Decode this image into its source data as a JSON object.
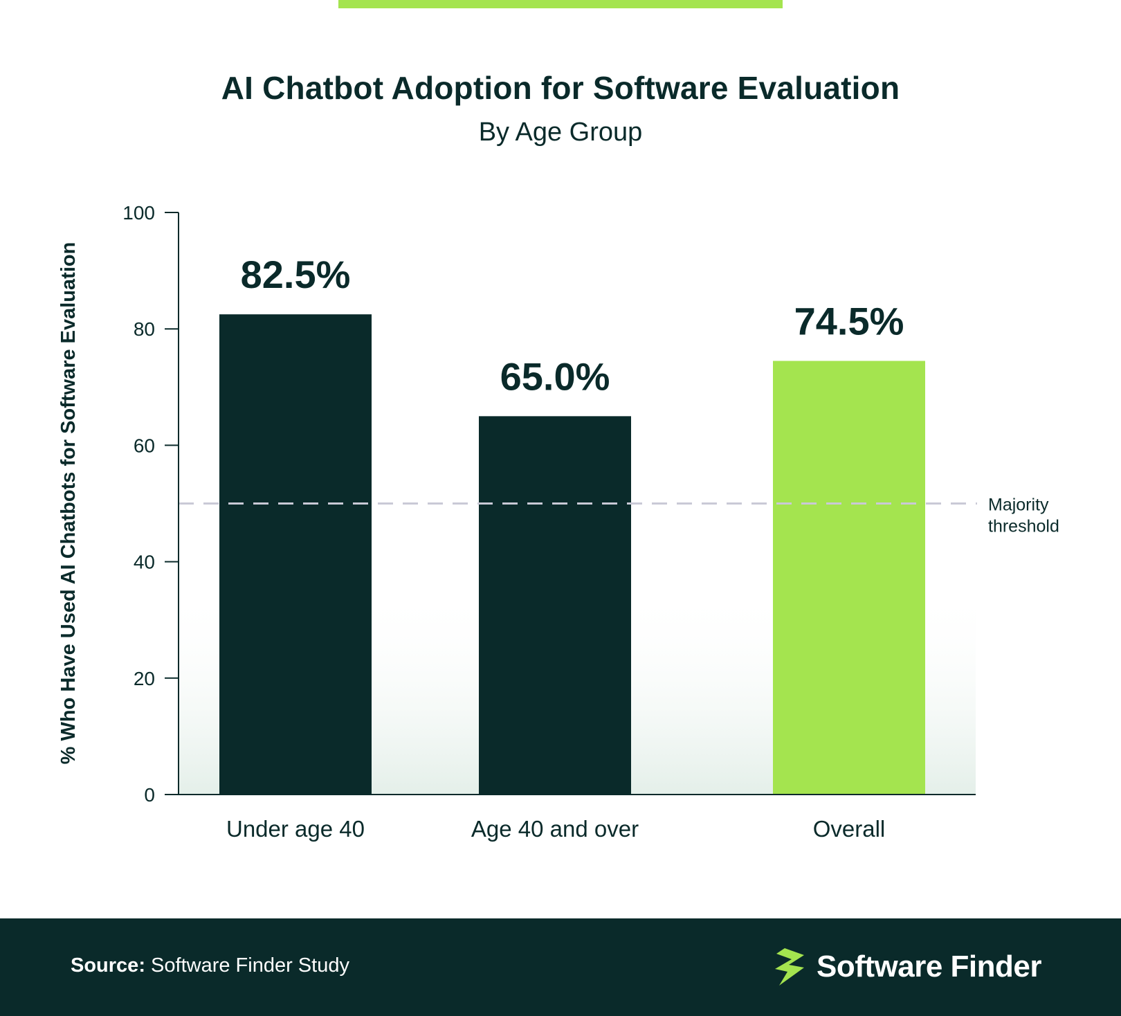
{
  "header": {
    "title": "AI Chatbot Adoption for Software Evaluation",
    "subtitle": "By Age Group"
  },
  "chart_data": {
    "type": "bar",
    "categories": [
      "Under age 40",
      "Age 40 and over",
      "Overall"
    ],
    "values": [
      82.5,
      65.0,
      74.5
    ],
    "value_labels": [
      "82.5%",
      "65.0%",
      "74.5%"
    ],
    "bar_colors": [
      "#0a2a2a",
      "#0a2a2a",
      "#a4e44f"
    ],
    "title": "AI Chatbot Adoption for Software Evaluation",
    "subtitle": "By Age Group",
    "xlabel": "",
    "ylabel": "% Who Have Used AI Chatbots for Software Evaluation",
    "ylim": [
      0,
      100
    ],
    "yticks": [
      0,
      20,
      40,
      60,
      80,
      100
    ],
    "reference_line": {
      "value": 50,
      "label_lines": [
        "Majority",
        "threshold"
      ],
      "style": "dashed",
      "color": "#c9c9d6"
    },
    "grid": false,
    "legend": "none"
  },
  "footer": {
    "source_label": "Source:",
    "source_text": "Software Finder Study",
    "brand": "Software Finder",
    "brand_icon": "lightning-bolt-icon",
    "brand_color": "#a4e44f",
    "background_color": "#0a2a2a"
  }
}
